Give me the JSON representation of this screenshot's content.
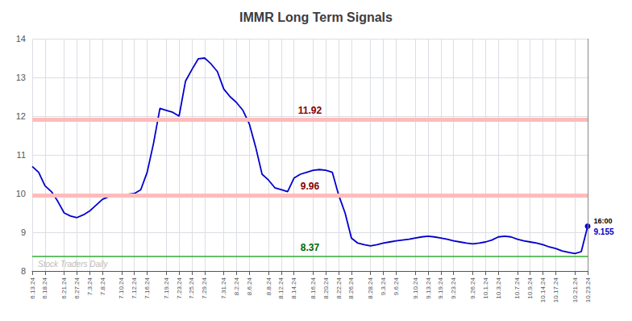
{
  "chart_data": {
    "type": "line",
    "title": "IMMR Long Term Signals",
    "categories": [
      "6.13.24",
      null,
      "6.18.24",
      null,
      null,
      "6.21.24",
      null,
      "6.27.24",
      null,
      "7.3.24",
      null,
      "7.8.24",
      null,
      null,
      "7.10.24",
      null,
      "7.12.24",
      null,
      "7.16.24",
      null,
      null,
      "7.19.24",
      null,
      "7.23.24",
      null,
      "7.25.24",
      null,
      "7.29.24",
      null,
      null,
      "7.31.24",
      null,
      "8.2.24",
      null,
      "8.6.24",
      null,
      null,
      "8.8.24",
      null,
      "8.12.24",
      null,
      "8.14.24",
      null,
      null,
      "8.16.24",
      null,
      "8.20.24",
      null,
      "8.22.24",
      null,
      "8.26.24",
      null,
      null,
      "8.28.24",
      null,
      "9.3.24",
      null,
      "9.6.24",
      null,
      null,
      "9.10.24",
      null,
      "9.13.24",
      null,
      "9.19.24",
      null,
      "9.23.24",
      null,
      null,
      "9.26.24",
      null,
      "10.1.24",
      null,
      "10.3.24",
      null,
      null,
      "10.7.24",
      null,
      "10.9.24",
      null,
      "10.14.24",
      null,
      "10.17.24",
      null,
      null,
      "10.21.24",
      null,
      "10.23.24"
    ],
    "values": [
      10.7,
      10.55,
      10.2,
      10.05,
      9.8,
      9.5,
      9.42,
      9.38,
      9.45,
      9.55,
      9.7,
      9.85,
      9.92,
      9.95,
      9.97,
      9.98,
      10.0,
      10.1,
      10.55,
      11.3,
      12.2,
      12.15,
      12.1,
      12.0,
      12.9,
      13.2,
      13.48,
      13.5,
      13.35,
      13.15,
      12.7,
      12.5,
      12.35,
      12.15,
      11.8,
      11.2,
      10.5,
      10.35,
      10.15,
      10.1,
      10.05,
      10.4,
      10.5,
      10.55,
      10.6,
      10.62,
      10.6,
      10.55,
      9.96,
      9.5,
      8.85,
      8.72,
      8.68,
      8.65,
      8.68,
      8.72,
      8.75,
      8.78,
      8.8,
      8.82,
      8.85,
      8.88,
      8.9,
      8.88,
      8.85,
      8.82,
      8.78,
      8.75,
      8.72,
      8.7,
      8.72,
      8.75,
      8.8,
      8.88,
      8.9,
      8.88,
      8.82,
      8.78,
      8.75,
      8.72,
      8.68,
      8.62,
      8.58,
      8.52,
      8.48,
      8.45,
      8.5,
      9.155
    ],
    "color": "#0000cc",
    "ylim": [
      8,
      14
    ],
    "yticks": [
      8,
      9,
      10,
      11,
      12,
      13,
      14
    ],
    "grid": true,
    "reference_lines": [
      {
        "value": 11.92,
        "label": "11.92",
        "color": "#ffbbbb",
        "label_color": "#880000"
      },
      {
        "value": 9.96,
        "label": "9.96",
        "color": "#ffbbbb",
        "label_color": "#880000"
      },
      {
        "value": 8.37,
        "label": "8.37",
        "color": "#33aa33",
        "label_color": "#006600"
      }
    ],
    "last_point_time": "16:00",
    "last_point_label": "9.155",
    "watermark": "Stock Traders Daily"
  }
}
